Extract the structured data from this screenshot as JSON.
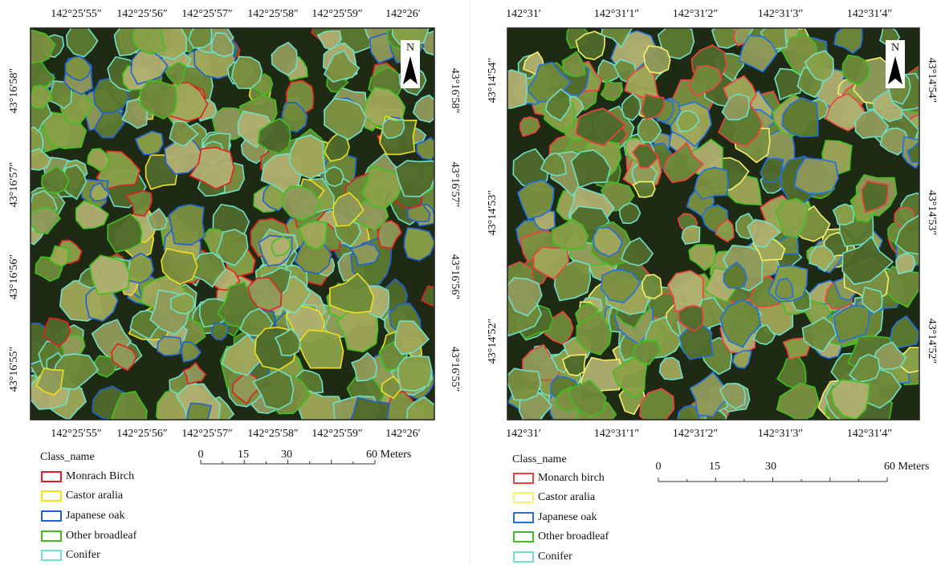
{
  "panels": [
    {
      "top_labels": [
        "142°25′55″",
        "142°25′56″",
        "142°25′57″",
        "142°25′58″",
        "142°25′59″",
        "142°26′"
      ],
      "bottom_labels": [
        "142°25′55″",
        "142°25′56″",
        "142°25′57″",
        "142°25′58″",
        "142°25′59″",
        "142°26′"
      ],
      "left_labels": [
        "43°16′58″",
        "43°16′57″",
        "43°16′56″",
        "43°16′55″"
      ],
      "right_labels": [
        "43°16′58″",
        "43°16′57″",
        "43°16′56″",
        "43°16′55″"
      ],
      "north": "N",
      "legend": {
        "title": "Class_name",
        "items": [
          {
            "label": "Monrach Birch",
            "color": "#e02020"
          },
          {
            "label": "Castor aralia",
            "color": "#f0e020"
          },
          {
            "label": "Japanese oak",
            "color": "#2060d0"
          },
          {
            "label": "Other broadleaf",
            "color": "#40c020"
          },
          {
            "label": "Conifer",
            "color": "#70e0c8"
          }
        ]
      },
      "scale_labels": [
        "0",
        "15",
        "30",
        "60 Meters"
      ]
    },
    {
      "top_labels": [
        "142°31′",
        "142°31′1″",
        "142°31′2″",
        "142°31′3″",
        "142°31′4″"
      ],
      "bottom_labels": [
        "142°31′",
        "142°31′1″",
        "142°31′2″",
        "142°31′3″",
        "142°31′4″"
      ],
      "left_labels": [
        "43°14′54″",
        "43°14′53″",
        "43°14′52″"
      ],
      "right_labels": [
        "43°14′54″",
        "43°14′53″",
        "43°14′52″"
      ],
      "north": "N",
      "legend": {
        "title": "Class_name",
        "items": [
          {
            "label": "Monarch birch",
            "color": "#f04040"
          },
          {
            "label": "Castor aralia",
            "color": "#f8f070"
          },
          {
            "label": "Japanese oak",
            "color": "#2070e0"
          },
          {
            "label": "Other broadleaf",
            "color": "#40c020"
          },
          {
            "label": "Conifer",
            "color": "#70e0c8"
          }
        ]
      },
      "scale_labels": [
        "0",
        "15",
        "30",
        "60 Meters"
      ]
    }
  ]
}
